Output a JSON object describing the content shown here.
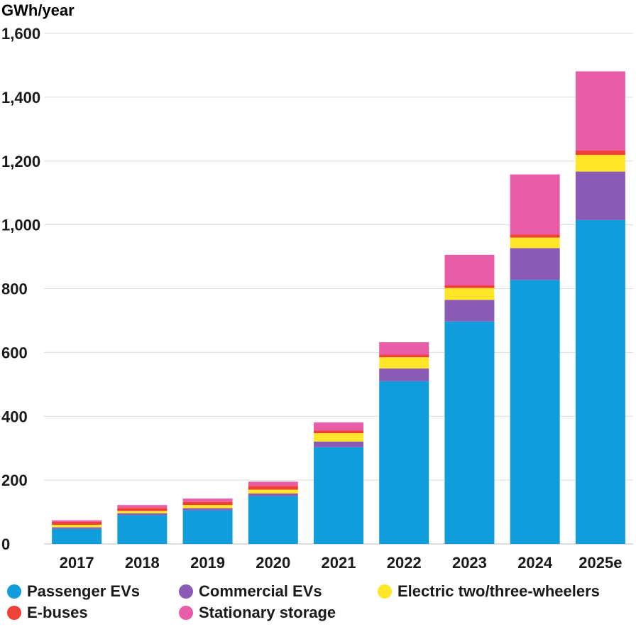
{
  "chart_data": {
    "type": "bar",
    "stacked": true,
    "ylabel": "GWh/year",
    "ylim": [
      0,
      1600
    ],
    "yticks": [
      "0",
      "200",
      "400",
      "600",
      "800",
      "1,000",
      "1,200",
      "1,400",
      "1,600"
    ],
    "ytick_values": [
      0,
      200,
      400,
      600,
      800,
      1000,
      1200,
      1400,
      1600
    ],
    "grid": true,
    "categories": [
      "2017",
      "2018",
      "2019",
      "2020",
      "2021",
      "2022",
      "2023",
      "2024",
      "2025e"
    ],
    "series": [
      {
        "name": "Passenger EVs",
        "color": "#109ddb",
        "values": [
          47,
          90,
          105,
          150,
          303,
          510,
          697,
          827,
          1015
        ]
      },
      {
        "name": "Commercial EVs",
        "color": "#8a5bb4",
        "values": [
          5,
          6,
          7,
          8,
          18,
          40,
          68,
          100,
          152
        ]
      },
      {
        "name": "Electric two/three-wheelers",
        "color": "#ffe629",
        "values": [
          8,
          7,
          10,
          12,
          26,
          35,
          37,
          33,
          52
        ]
      },
      {
        "name": "E-buses",
        "color": "#ee4236",
        "values": [
          9,
          10,
          10,
          12,
          8,
          8,
          8,
          10,
          14
        ]
      },
      {
        "name": "Stationary storage",
        "color": "#e95ca8",
        "values": [
          5,
          9,
          10,
          13,
          26,
          39,
          96,
          188,
          248
        ]
      }
    ],
    "legend_position": "bottom"
  }
}
